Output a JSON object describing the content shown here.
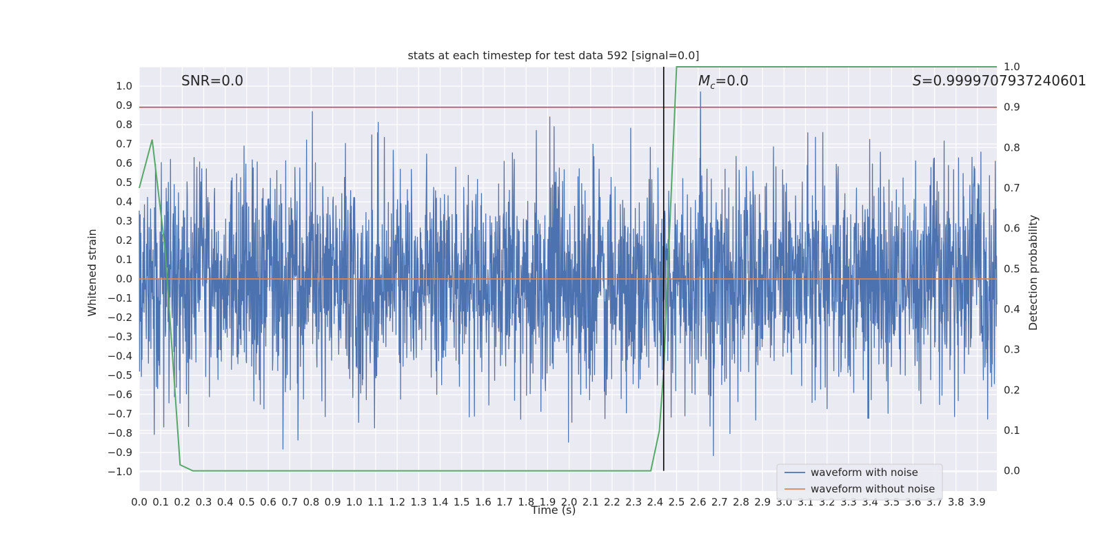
{
  "chart_data": {
    "type": "line",
    "title": "stats at each timestep for test data 592 [signal=0.0]",
    "xlabel": "Time (s)",
    "ylabel": "Whitened strain",
    "ylabel_right": "Detection probability",
    "xlim": [
      0.0,
      3.99
    ],
    "ylim": [
      -1.1,
      1.1
    ],
    "ylim_right": [
      -0.05,
      1.0
    ],
    "xticks": [
      "0.0",
      "0.1",
      "0.2",
      "0.3",
      "0.4",
      "0.5",
      "0.6",
      "0.7",
      "0.8",
      "0.9",
      "1.0",
      "1.1",
      "1.2",
      "1.3",
      "1.4",
      "1.5",
      "1.6",
      "1.7",
      "1.8",
      "1.9",
      "2.0",
      "2.1",
      "2.2",
      "2.3",
      "2.4",
      "2.5",
      "2.6",
      "2.7",
      "2.8",
      "2.9",
      "3.0",
      "3.1",
      "3.2",
      "3.3",
      "3.4",
      "3.5",
      "3.6",
      "3.7",
      "3.8",
      "3.9"
    ],
    "yticks": [
      "1.0",
      "0.9",
      "0.8",
      "0.7",
      "0.6",
      "0.5",
      "0.4",
      "0.3",
      "0.2",
      "0.1",
      "0.0",
      "−0.1",
      "−0.2",
      "−0.3",
      "−0.4",
      "−0.5",
      "−0.6",
      "−0.7",
      "−0.8",
      "−0.9",
      "−1.0"
    ],
    "yticks_right": [
      "1.0",
      "0.9",
      "0.8",
      "0.7",
      "0.6",
      "0.5",
      "0.4",
      "0.3",
      "0.2",
      "0.1",
      "0.0"
    ],
    "grid": true,
    "legend_position": "lower-right",
    "annotations": {
      "snr": "SNR=0.0",
      "mc_symbol": "M",
      "mc_sub": "c",
      "mc_value": "=0.0",
      "s_symbol": "S",
      "s_value": "=0.9999707937240601"
    },
    "series": [
      {
        "name": "waveform with noise",
        "color": "#4c72b0",
        "description": "whitened noise, amplitude mostly within ±0.55 with spikes to about ±1.0"
      },
      {
        "name": "waveform without noise",
        "color": "#dd8452",
        "values_constant": 0.0
      }
    ],
    "detection_probability": {
      "color": "#55a868",
      "x": [
        0.0,
        0.06,
        0.12,
        0.19,
        0.25,
        2.38,
        2.42,
        2.44,
        2.5,
        3.99
      ],
      "y": [
        0.7,
        0.82,
        0.55,
        0.015,
        0.0,
        0.0,
        0.1,
        0.25,
        1.0,
        1.0
      ]
    },
    "threshold": {
      "value_right": 0.9,
      "color": "#c44e52"
    },
    "vertical_marker": {
      "x": 2.44,
      "color": "#000000"
    },
    "background": "#eaeaf2"
  }
}
